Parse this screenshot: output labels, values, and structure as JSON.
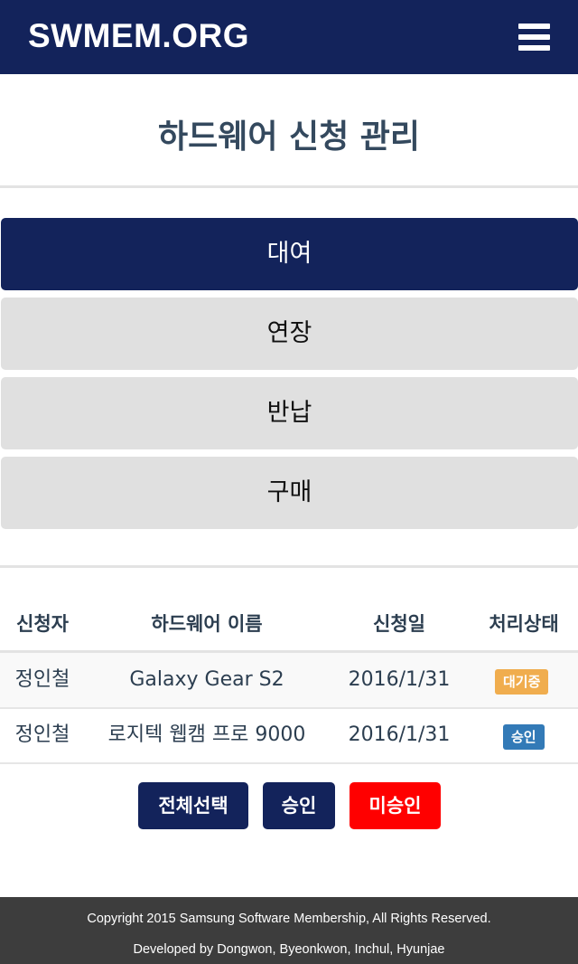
{
  "navbar": {
    "brand": "SWMEM.ORG"
  },
  "page": {
    "title": "하드웨어 신청 관리"
  },
  "tabs": [
    {
      "label": "대여",
      "active": true
    },
    {
      "label": "연장",
      "active": false
    },
    {
      "label": "반납",
      "active": false
    },
    {
      "label": "구매",
      "active": false
    }
  ],
  "table": {
    "headers": [
      "신청자",
      "하드웨어 이름",
      "신청일",
      "처리상태"
    ],
    "rows": [
      {
        "applicant": "정인철",
        "hardware": "Galaxy Gear S2",
        "date": "2016/1/31",
        "status": "대기중",
        "status_color": "#f0ad4e"
      },
      {
        "applicant": "정인철",
        "hardware": "로지텍 웹캠 프로 9000",
        "date": "2016/1/31",
        "status": "승인",
        "status_color": "#337ab7"
      }
    ]
  },
  "actions": {
    "select_all": "전체선택",
    "approve": "승인",
    "reject": "미승인"
  },
  "colors": {
    "primary": "#13235b",
    "danger": "#ff0000",
    "tab_inactive": "#e0e0e0",
    "footer_bg": "#3d3d3d"
  },
  "footer": {
    "copyright": "Copyright 2015 Samsung Software Membership, All Rights Reserved.",
    "developers": "Developed by Dongwon, Byeonkwon, Inchul, Hyunjae"
  }
}
